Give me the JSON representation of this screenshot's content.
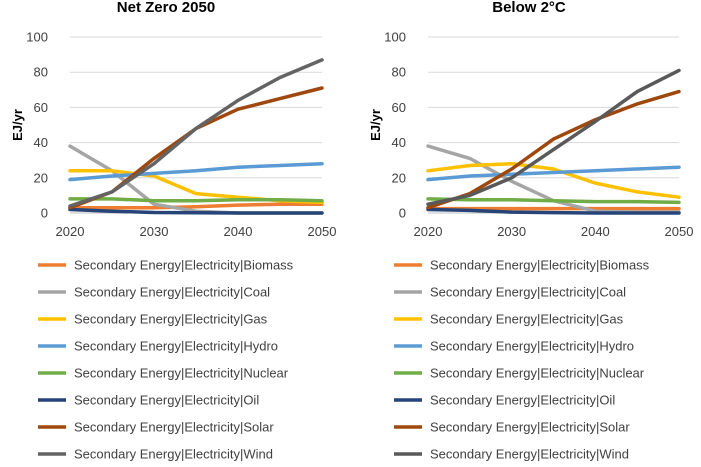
{
  "chart_data": [
    {
      "type": "line",
      "title": "Net Zero 2050",
      "ylabel": "EJ/yr",
      "xlabel": "",
      "x": [
        2020,
        2025,
        2030,
        2035,
        2040,
        2045,
        2050
      ],
      "xticks": [
        "2020",
        "2030",
        "2040",
        "2050"
      ],
      "yticks": [
        "0",
        "20",
        "40",
        "60",
        "80",
        "100"
      ],
      "ylim": [
        0,
        100
      ],
      "xlim": [
        2020,
        2050
      ],
      "grid": "horizontal",
      "legend_position": "bottom",
      "series": [
        {
          "name": "Secondary Energy|Electricity|Biomass",
          "color": "#ED7D31",
          "values": [
            3,
            3,
            3,
            3.5,
            4.5,
            5,
            5
          ]
        },
        {
          "name": "Secondary Energy|Electricity|Coal",
          "color": "#A5A5A5",
          "values": [
            38,
            24,
            5,
            1,
            0,
            0,
            0
          ]
        },
        {
          "name": "Secondary Energy|Electricity|Gas",
          "color": "#FFC000",
          "values": [
            24,
            24,
            21,
            11,
            9,
            7,
            6
          ]
        },
        {
          "name": "Secondary Energy|Electricity|Hydro",
          "color": "#5B9BD5",
          "values": [
            19,
            21,
            22.5,
            24,
            26,
            27,
            28
          ]
        },
        {
          "name": "Secondary Energy|Electricity|Nuclear",
          "color": "#70AD47",
          "values": [
            8,
            8,
            7,
            7,
            7.5,
            7.5,
            7
          ]
        },
        {
          "name": "Secondary Energy|Electricity|Oil",
          "color": "#264478",
          "values": [
            2,
            1,
            0.3,
            0.1,
            0,
            0,
            0
          ]
        },
        {
          "name": "Secondary Energy|Electricity|Solar",
          "color": "#9E480E",
          "values": [
            3,
            12,
            31,
            48,
            59,
            65,
            71
          ]
        },
        {
          "name": "Secondary Energy|Electricity|Wind",
          "color": "#636363",
          "values": [
            4,
            12,
            28,
            48,
            64,
            77,
            87
          ]
        }
      ]
    },
    {
      "type": "line",
      "title": "Below 2°C",
      "ylabel": "EJ/yr",
      "xlabel": "",
      "x": [
        2020,
        2025,
        2030,
        2035,
        2040,
        2045,
        2050
      ],
      "xticks": [
        "2020",
        "2030",
        "2040",
        "2050"
      ],
      "yticks": [
        "0",
        "20",
        "40",
        "60",
        "80",
        "100"
      ],
      "ylim": [
        0,
        100
      ],
      "xlim": [
        2020,
        2050
      ],
      "grid": "horizontal",
      "legend_position": "bottom",
      "series": [
        {
          "name": "Secondary Energy|Electricity|Biomass",
          "color": "#ED7D31",
          "values": [
            2.5,
            2.5,
            2.5,
            2.5,
            2.5,
            2.5,
            2.5
          ]
        },
        {
          "name": "Secondary Energy|Electricity|Coal",
          "color": "#A5A5A5",
          "values": [
            38,
            31,
            18,
            7,
            1,
            0.5,
            0.5
          ]
        },
        {
          "name": "Secondary Energy|Electricity|Gas",
          "color": "#FFC000",
          "values": [
            24,
            27,
            28,
            25,
            17,
            12,
            9
          ]
        },
        {
          "name": "Secondary Energy|Electricity|Hydro",
          "color": "#5B9BD5",
          "values": [
            19,
            21,
            22,
            23,
            24,
            25,
            26
          ]
        },
        {
          "name": "Secondary Energy|Electricity|Nuclear",
          "color": "#70AD47",
          "values": [
            8,
            7.5,
            7.5,
            7,
            6.5,
            6.5,
            6
          ]
        },
        {
          "name": "Secondary Energy|Electricity|Oil",
          "color": "#264478",
          "values": [
            2,
            1.5,
            0.5,
            0.2,
            0,
            0,
            0
          ]
        },
        {
          "name": "Secondary Energy|Electricity|Solar",
          "color": "#9E480E",
          "values": [
            3,
            11,
            25,
            42,
            53,
            62,
            69
          ]
        },
        {
          "name": "Secondary Energy|Electricity|Wind",
          "color": "#595959",
          "values": [
            5,
            10,
            20,
            36,
            52,
            69,
            81
          ]
        }
      ]
    }
  ]
}
